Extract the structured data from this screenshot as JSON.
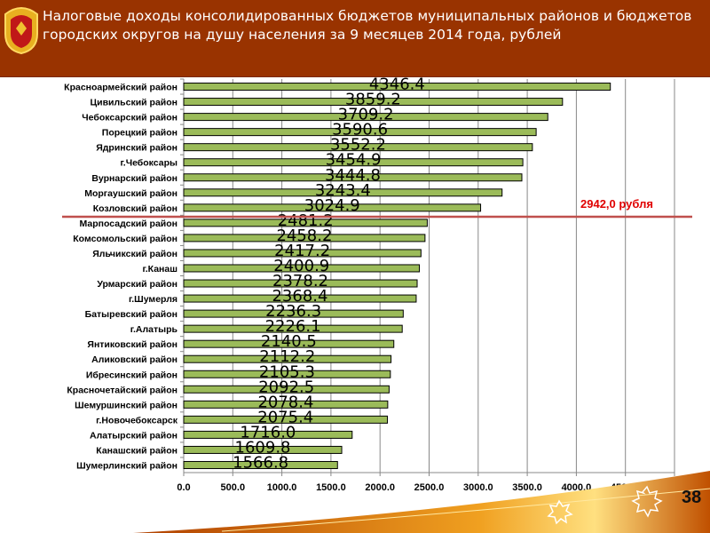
{
  "header": {
    "title": "Налоговые доходы консолидированных бюджетов муниципальных районов и бюджетов городских округов на душу населения за 9 месяцев 2014 года, рублей"
  },
  "chart_data": {
    "type": "bar",
    "orientation": "horizontal",
    "categories": [
      "Красноармейский район",
      "Цивильский район",
      "Чебоксарский район",
      "Порецкий район",
      "Ядринский район",
      "г.Чебоксары",
      "Вурнарский район",
      "Моргаушский район",
      "Козловский район",
      "Марпосадский район",
      "Комсомольский район",
      "Яльчикский район",
      "г.Канаш",
      "Урмарский район",
      "г.Шумерля",
      "Батыревский район",
      "г.Алатырь",
      "Янтиковский район",
      "Аликовский район",
      "Ибресинский район",
      "Красночетайский район",
      "Шемуршинский район",
      "г.Новочебоксарск",
      "Алатырский район",
      "Канашский район",
      "Шумерлинский район"
    ],
    "values": [
      4346.4,
      3859.2,
      3709.2,
      3590.6,
      3552.2,
      3454.9,
      3444.8,
      3243.4,
      3024.9,
      2481.2,
      2458.2,
      2417.2,
      2400.9,
      2378.2,
      2368.4,
      2236.3,
      2226.1,
      2140.5,
      2112.2,
      2105.3,
      2092.5,
      2078.4,
      2075.4,
      1716.0,
      1609.8,
      1566.8
    ],
    "data_labels": [
      "4346.4",
      "3859.2",
      "3709.2",
      "3590.6",
      "3552.2",
      "3454.9",
      "3444.8",
      "3243.4",
      "3024.9",
      "2481.2",
      "2458.2",
      "2417.2",
      "2400.9",
      "2378.2",
      "2368.4",
      "2236.3",
      "2226.1",
      "2140.5",
      "2112.2",
      "2105.3",
      "2092.5",
      "2078.4",
      "2075.4",
      "1716.0",
      "1609.8",
      "1566.8"
    ],
    "xlim": [
      0,
      5000
    ],
    "xticks": [
      "0.0",
      "500.0",
      "1000.0",
      "1500.0",
      "2000.0",
      "2500.0",
      "3000.0",
      "3500.0",
      "4000.0",
      "4500.0",
      "5000.0"
    ],
    "grid": true,
    "bar_color": "#9bbb59",
    "reference_line": {
      "label": "2942,0 рубля",
      "color": "#c0504d",
      "label_color": "#e00000"
    }
  },
  "page_number": "38"
}
